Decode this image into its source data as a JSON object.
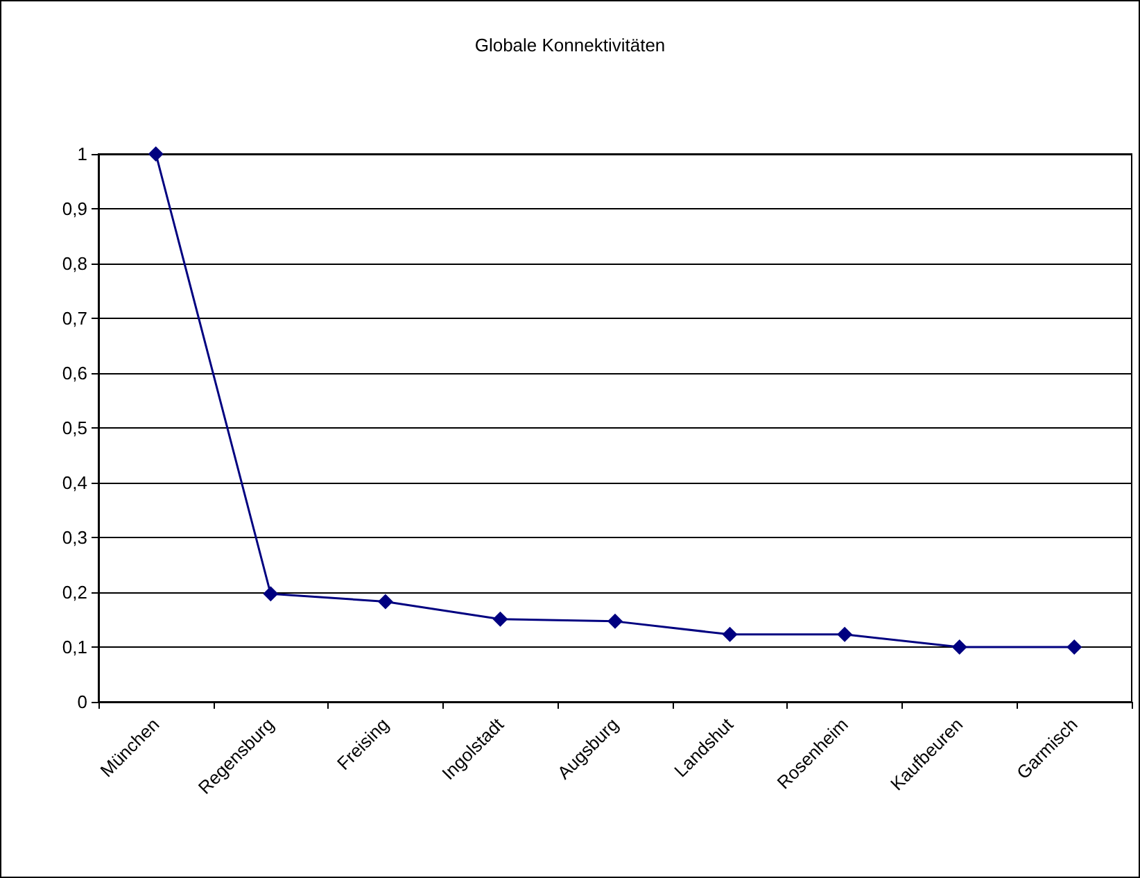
{
  "chart_data": {
    "type": "line",
    "title": "Globale Konnektivitäten",
    "categories": [
      "München",
      "Regensburg",
      "Freising",
      "Ingolstadt",
      "Augsburg",
      "Landshut",
      "Rosenheim",
      "Kaufbeuren",
      "Garmisch"
    ],
    "series": [
      {
        "color": "#000080",
        "values": [
          1,
          0.197,
          0.183,
          0.151,
          0.147,
          0.123,
          0.123,
          0.1,
          0.1
        ]
      }
    ],
    "ylim": [
      0,
      1
    ],
    "yticks": [
      {
        "value": 0,
        "label": "0"
      },
      {
        "value": 0.1,
        "label": "0,1"
      },
      {
        "value": 0.2,
        "label": "0,2"
      },
      {
        "value": 0.3,
        "label": "0,3"
      },
      {
        "value": 0.4,
        "label": "0,4"
      },
      {
        "value": 0.5,
        "label": "0,5"
      },
      {
        "value": 0.6,
        "label": "0,6"
      },
      {
        "value": 0.7,
        "label": "0,7"
      },
      {
        "value": 0.8,
        "label": "0,8"
      },
      {
        "value": 0.9,
        "label": "0,9"
      },
      {
        "value": 1,
        "label": "1"
      }
    ],
    "grid": "y",
    "marker": "diamond",
    "line_style": "solid"
  }
}
